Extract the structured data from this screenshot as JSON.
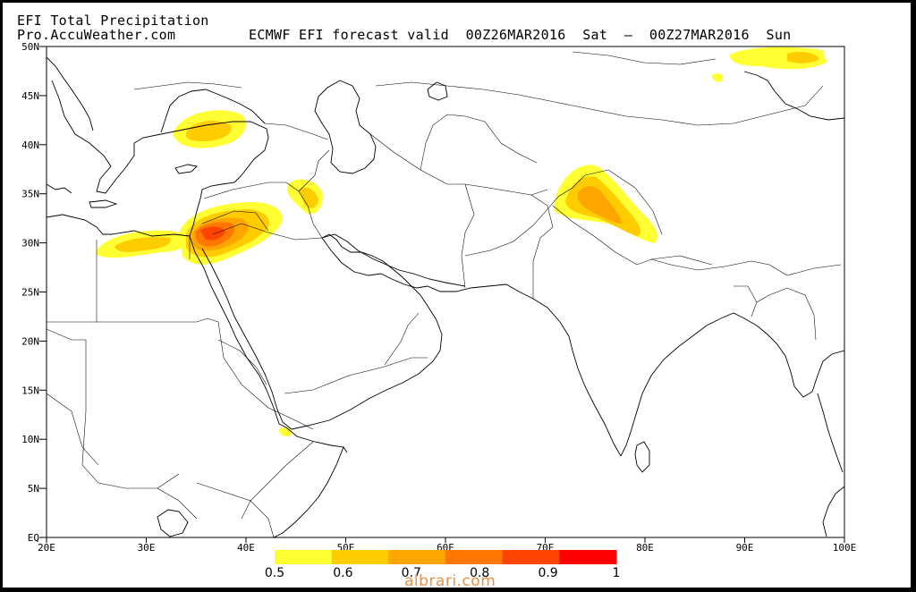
{
  "header": {
    "title": "EFI Total Precipitation",
    "source": "Pro.AccuWeather.com",
    "forecast": "ECMWF EFI forecast valid  00Z26MAR2016  Sat  —  00Z27MAR2016  Sun"
  },
  "map": {
    "lat_labels": [
      "50N",
      "45N",
      "40N",
      "35N",
      "30N",
      "25N",
      "20N",
      "15N",
      "10N",
      "5N",
      "EQ"
    ],
    "lon_labels": [
      "20E",
      "30E",
      "40E",
      "50E",
      "60E",
      "70E",
      "80E",
      "90E",
      "100E"
    ],
    "lat_range": [
      0,
      50
    ],
    "lon_range": [
      20,
      100
    ]
  },
  "colorbar": {
    "labels": [
      "0.5",
      "0.6",
      "0.7",
      "0.8",
      "0.9",
      "1"
    ],
    "colors": [
      "#ffff33",
      "#ffcc00",
      "#ffa500",
      "#ff7700",
      "#ff4400",
      "#ff0000"
    ]
  },
  "watermark": "albrari.com"
}
